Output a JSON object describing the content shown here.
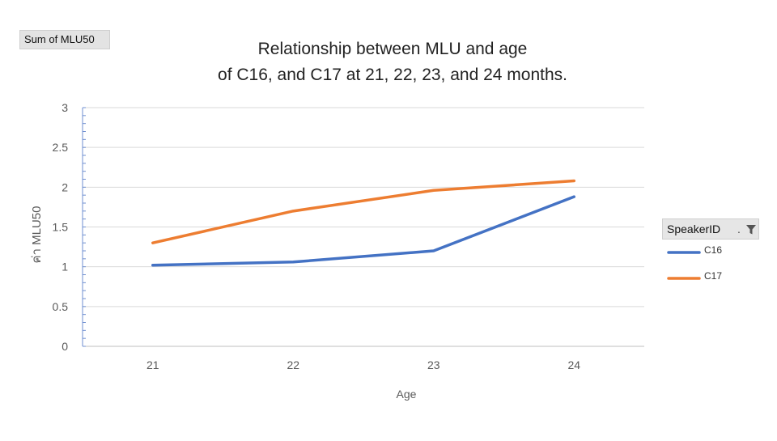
{
  "field_button": {
    "label": "Sum of MLU50"
  },
  "legend": {
    "header": "SpeakerID",
    "header_suffix": ".",
    "entries": [
      {
        "label": "C16",
        "color": "#4472C4"
      },
      {
        "label": "C17",
        "color": "#ED7D31"
      }
    ]
  },
  "chart_data": {
    "type": "line",
    "title": [
      "Relationship between MLU and age",
      "of C16, and C17 at 21, 22, 23, and 24 months."
    ],
    "xlabel": "Age",
    "ylabel": "ค่า MLU50",
    "categories": [
      "21",
      "22",
      "23",
      "24"
    ],
    "ylim": [
      0,
      3
    ],
    "yticks": [
      "0",
      "0.5",
      "1",
      "1.5",
      "2",
      "2.5",
      "3"
    ],
    "grid": true,
    "legend_position": "right",
    "series": [
      {
        "name": "C16",
        "color": "#4472C4",
        "values": [
          1.02,
          1.06,
          1.2,
          1.88
        ]
      },
      {
        "name": "C17",
        "color": "#ED7D31",
        "values": [
          1.3,
          1.7,
          1.96,
          2.08
        ]
      }
    ]
  }
}
